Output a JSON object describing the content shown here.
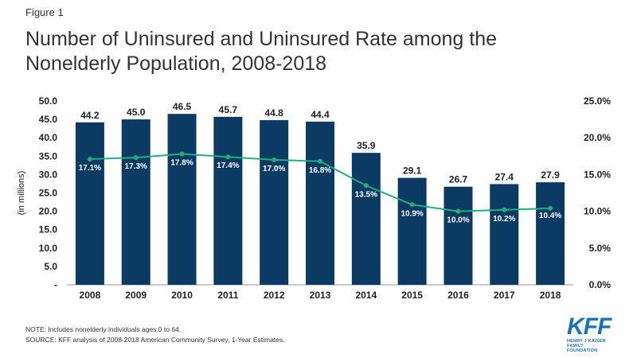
{
  "figure_label": "Figure 1",
  "title": "Number of Uninsured and Uninsured Rate among the Nonelderly Population, 2008-2018",
  "note": "NOTE: Includes nonelderly individuals ages 0 to 64.",
  "source": "SOURCE: KFF analysis of 2008-2018 American Community Survey, 1-Year Estimates.",
  "logo": {
    "main": "KFF",
    "line1": "HENRY J KAISER",
    "line2": "FAMILY FOUNDATION"
  },
  "colors": {
    "bar": "#0b3a63",
    "line": "#1db07a",
    "axis_text": "#222222"
  },
  "chart_data": {
    "type": "bar",
    "categories": [
      "2008",
      "2009",
      "2010",
      "2011",
      "2012",
      "2013",
      "2014",
      "2015",
      "2016",
      "2017",
      "2018"
    ],
    "series": [
      {
        "values": [
          44.2,
          45.0,
          46.5,
          45.7,
          44.8,
          44.4,
          35.9,
          29.1,
          26.7,
          27.4,
          27.9
        ]
      },
      {
        "type": "line",
        "values": [
          17.1,
          17.3,
          17.8,
          17.4,
          17.0,
          16.8,
          13.5,
          10.9,
          10.0,
          10.2,
          10.4
        ]
      }
    ],
    "bar_labels": [
      "44.2",
      "45.0",
      "46.5",
      "45.7",
      "44.8",
      "44.4",
      "35.9",
      "29.1",
      "26.7",
      "27.4",
      "27.9"
    ],
    "line_labels": [
      "17.1%",
      "17.3%",
      "17.8%",
      "17.4%",
      "17.0%",
      "16.8%",
      "13.5%",
      "10.9%",
      "10.0%",
      "10.2%",
      "10.4%"
    ],
    "ylabel": "(in millions)",
    "ylim": [
      0,
      50
    ],
    "y_ticks": [
      "-",
      "5.0",
      "10.0",
      "15.0",
      "20.0",
      "25.0",
      "30.0",
      "35.0",
      "40.0",
      "45.0",
      "50.0"
    ],
    "y2lim": [
      0,
      25
    ],
    "y2_ticks": [
      "0.0%",
      "5.0%",
      "10.0%",
      "15.0%",
      "20.0%",
      "25.0%"
    ],
    "grid": false
  }
}
